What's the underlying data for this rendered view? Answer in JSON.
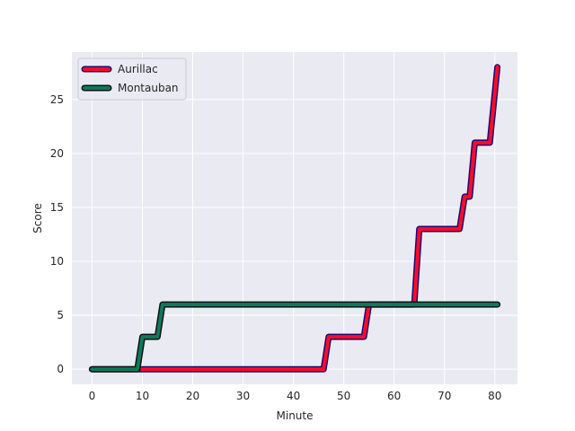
{
  "chart_data": {
    "type": "line",
    "xlabel": "Minute",
    "ylabel": "Score",
    "xlim": [
      -4,
      84.5
    ],
    "ylim": [
      -1.4,
      29.4
    ],
    "xticks": [
      0,
      10,
      20,
      30,
      40,
      50,
      60,
      70,
      80
    ],
    "yticks": [
      0,
      5,
      10,
      15,
      20,
      25
    ],
    "grid": true,
    "legend_position": "upper-left",
    "series": [
      {
        "name": "Aurillac",
        "color": "#ff0a2d",
        "edge_color": "#1a0a6e",
        "x": [
          0,
          46,
          47,
          54,
          55,
          64,
          65,
          73,
          74,
          75,
          76,
          79,
          80.5
        ],
        "y": [
          0,
          0,
          3,
          3,
          6,
          6,
          13,
          13,
          16,
          16,
          21,
          21,
          28
        ]
      },
      {
        "name": "Montauban",
        "color": "#0d7a5a",
        "edge_color": "#111111",
        "x": [
          0,
          9,
          10,
          13,
          14,
          80.5
        ],
        "y": [
          0,
          0,
          3,
          3,
          6,
          6
        ]
      }
    ]
  }
}
